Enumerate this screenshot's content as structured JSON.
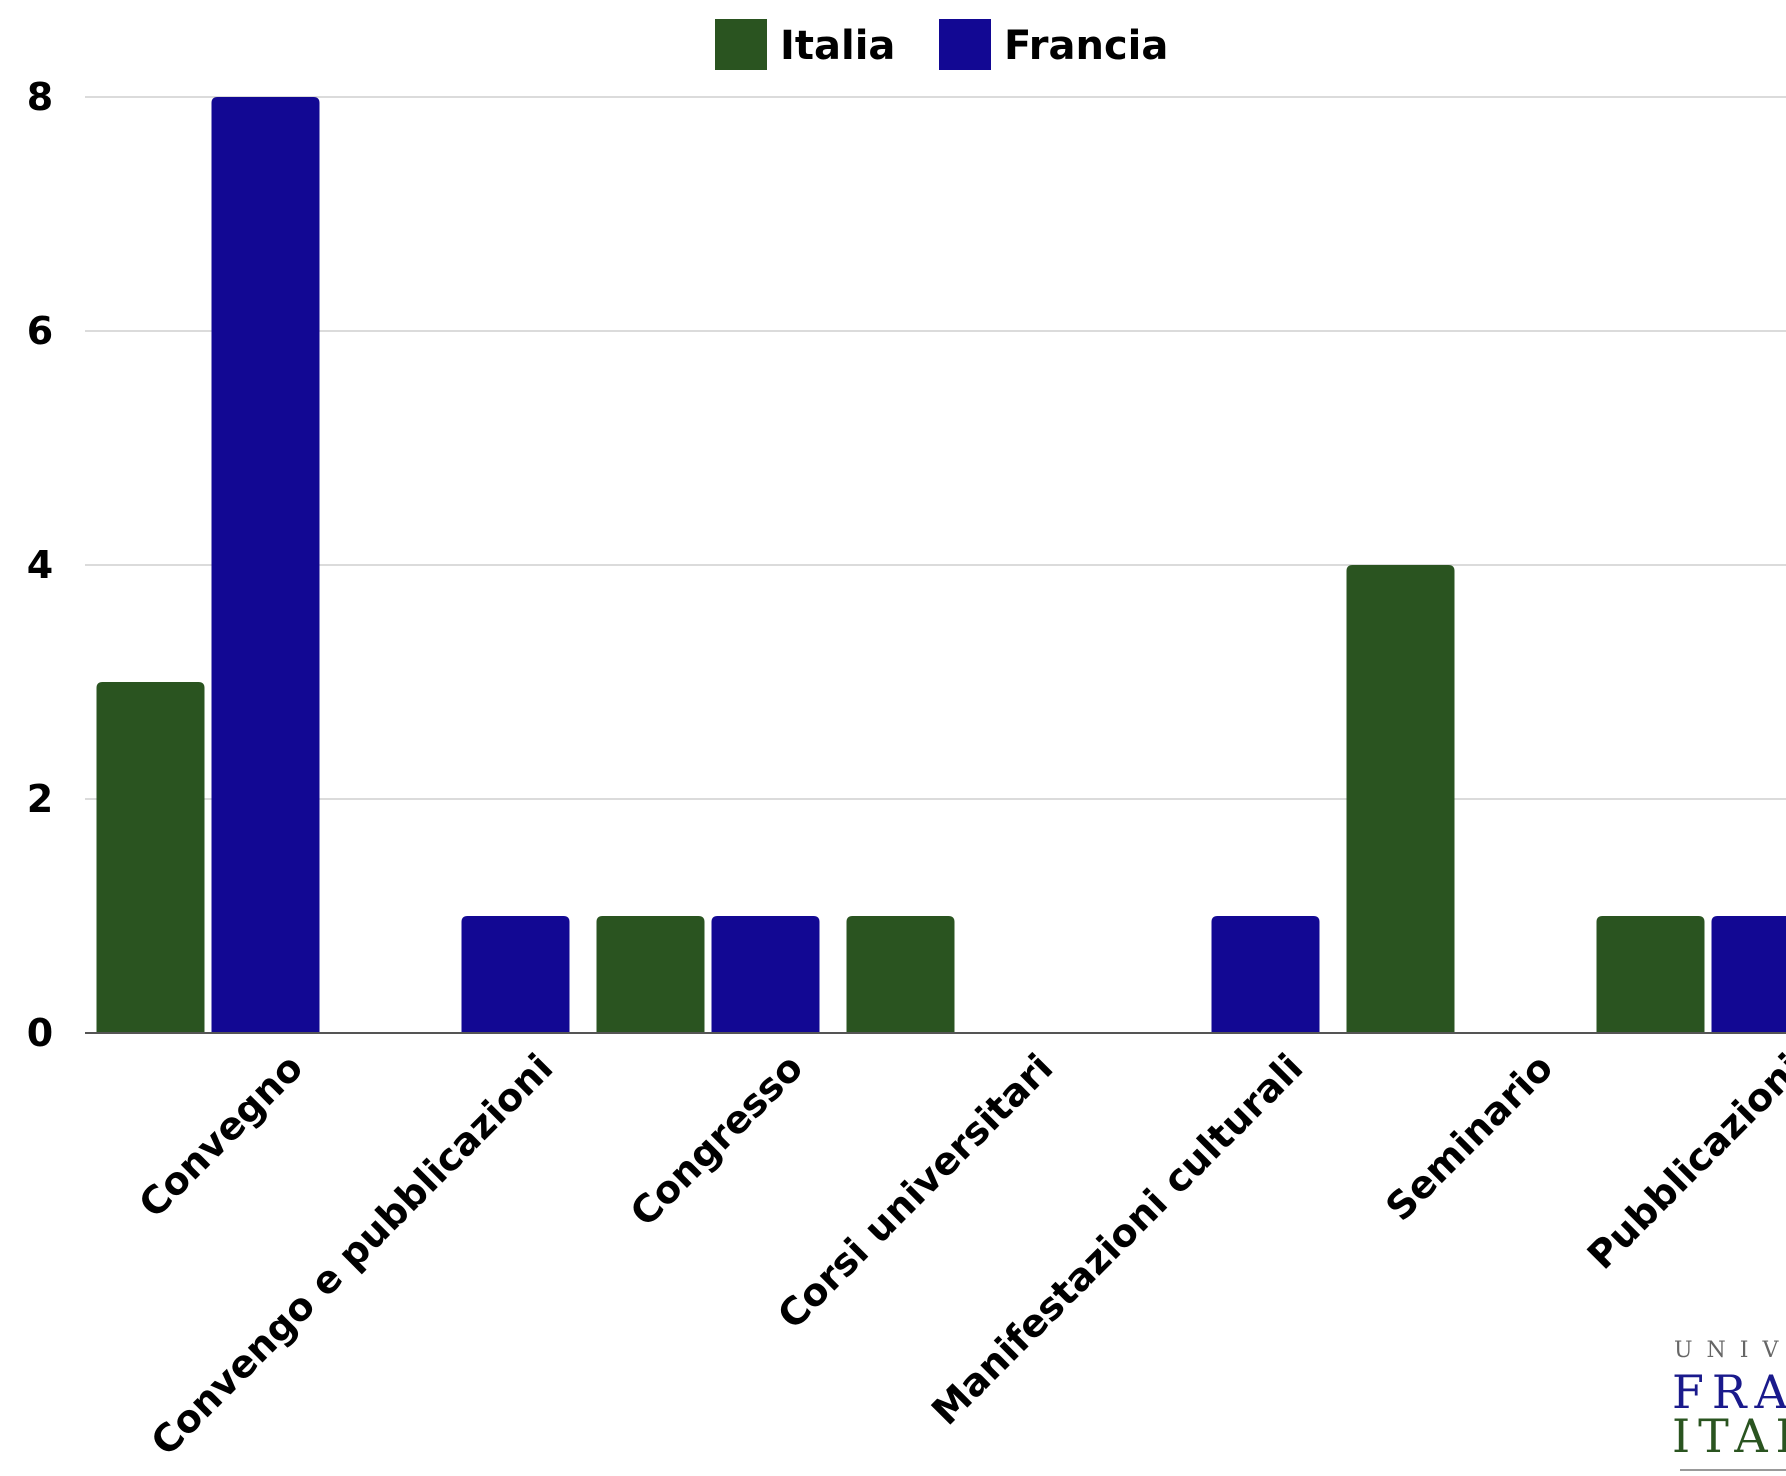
{
  "chart_data": {
    "type": "bar",
    "categories": [
      "Convegno",
      "Convengo e pubblicazioni",
      "Congresso",
      "Corsi universitari",
      "Manifestazioni culturali",
      "Seminario",
      "Pubblicazioni"
    ],
    "series": [
      {
        "name": "Italia",
        "color": "#2a5420",
        "values": [
          3,
          0,
          1,
          1,
          0,
          4,
          1
        ]
      },
      {
        "name": "Francia",
        "color": "#120893",
        "values": [
          8,
          1,
          1,
          0,
          1,
          0,
          1
        ]
      }
    ],
    "yticks": [
      0,
      2,
      4,
      6,
      8
    ],
    "ylim": [
      0,
      8
    ],
    "grid": true,
    "legend_position": "top-center",
    "title": "",
    "xlabel": "",
    "ylabel": ""
  },
  "logo": {
    "line1": "UNIV",
    "line2": "FRA",
    "line3": "ITAL"
  }
}
